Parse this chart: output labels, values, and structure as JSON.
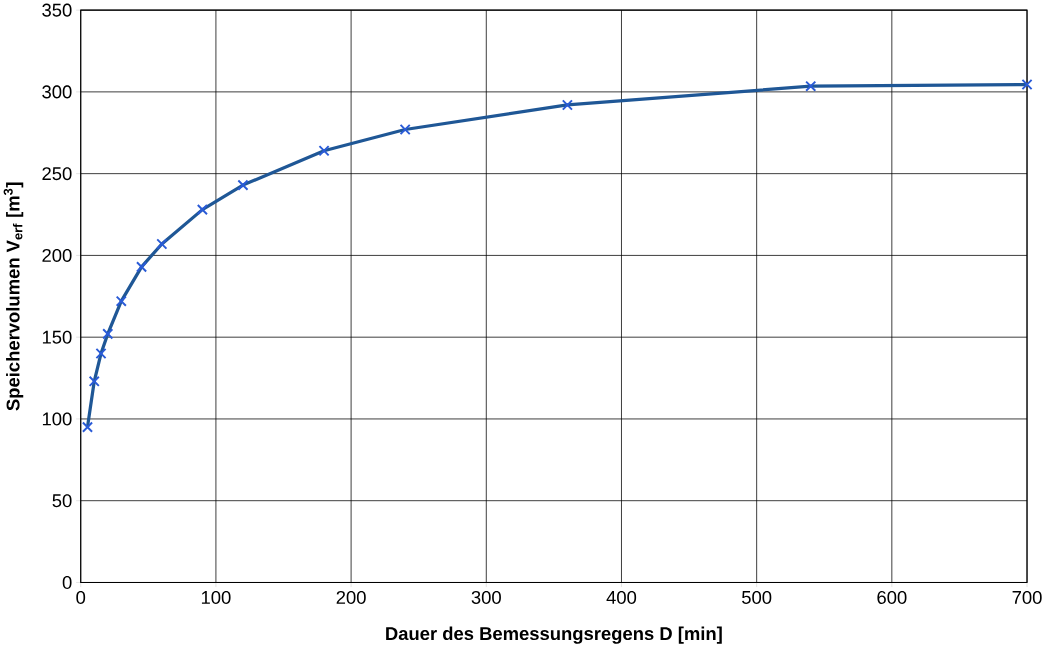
{
  "chart_data": {
    "type": "line",
    "xlabel": "Dauer des Bemessungsregens D [min]",
    "ylabel": "Speichervolumen V$_{erf}$ [m$^{3}$]",
    "x": [
      5,
      10,
      15,
      20,
      30,
      45,
      60,
      90,
      120,
      180,
      240,
      360,
      540,
      700
    ],
    "series": [
      {
        "color": "#1f5796",
        "values": [
          95,
          123,
          140,
          152,
          172,
          193,
          207,
          228,
          243,
          264,
          277,
          292,
          303.5,
          304.5
        ]
      }
    ],
    "xlim": [
      0,
      700
    ],
    "ylim": [
      0,
      350
    ],
    "xticks": [
      0,
      100,
      200,
      300,
      400,
      500,
      600,
      700
    ],
    "yticks": [
      0,
      50,
      100,
      150,
      200,
      250,
      300,
      350
    ],
    "grid": true,
    "marker": "cross",
    "line_style": "solid"
  }
}
